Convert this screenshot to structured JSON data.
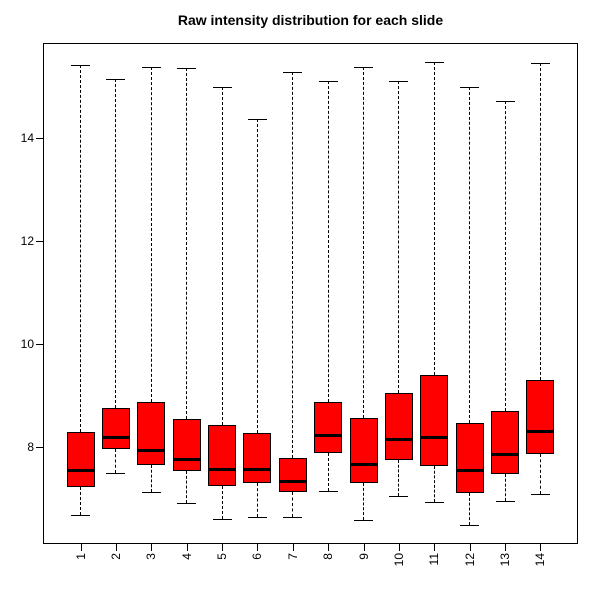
{
  "chart_data": {
    "type": "boxplot",
    "title": "Raw intensity distribution for each slide",
    "xlabel": "",
    "ylabel": "",
    "categories": [
      "1",
      "2",
      "3",
      "4",
      "5",
      "6",
      "7",
      "8",
      "9",
      "10",
      "11",
      "12",
      "13",
      "14"
    ],
    "yticks": [
      8,
      10,
      12,
      14
    ],
    "ylim": [
      6.12,
      15.85
    ],
    "grid": false,
    "legend": null,
    "box_fill": "#ff0000",
    "box_border": "#000000",
    "series": [
      {
        "label": "1",
        "whisker_low": 6.68,
        "q1": 7.22,
        "median": 7.55,
        "q3": 8.3,
        "whisker_high": 15.43
      },
      {
        "label": "2",
        "whisker_low": 7.5,
        "q1": 7.97,
        "median": 8.2,
        "q3": 8.77,
        "whisker_high": 15.16
      },
      {
        "label": "3",
        "whisker_low": 7.13,
        "q1": 7.66,
        "median": 7.95,
        "q3": 8.88,
        "whisker_high": 15.39
      },
      {
        "label": "4",
        "whisker_low": 6.92,
        "q1": 7.53,
        "median": 7.77,
        "q3": 8.54,
        "whisker_high": 15.37
      },
      {
        "label": "5",
        "whisker_low": 6.61,
        "q1": 7.24,
        "median": 7.57,
        "q3": 8.44,
        "whisker_high": 15.0
      },
      {
        "label": "6",
        "whisker_low": 6.65,
        "q1": 7.31,
        "median": 7.57,
        "q3": 8.27,
        "whisker_high": 14.38
      },
      {
        "label": "7",
        "whisker_low": 6.65,
        "q1": 7.13,
        "median": 7.34,
        "q3": 7.79,
        "whisker_high": 15.28
      },
      {
        "label": "8",
        "whisker_low": 7.15,
        "q1": 7.89,
        "median": 8.23,
        "q3": 8.88,
        "whisker_high": 15.12
      },
      {
        "label": "9",
        "whisker_low": 6.58,
        "q1": 7.3,
        "median": 7.67,
        "q3": 8.57,
        "whisker_high": 15.38
      },
      {
        "label": "10",
        "whisker_low": 7.05,
        "q1": 7.76,
        "median": 8.15,
        "q3": 9.05,
        "whisker_high": 15.12
      },
      {
        "label": "11",
        "whisker_low": 6.94,
        "q1": 7.63,
        "median": 8.19,
        "q3": 9.41,
        "whisker_high": 15.49
      },
      {
        "label": "12",
        "whisker_low": 6.49,
        "q1": 7.11,
        "median": 7.55,
        "q3": 8.47,
        "whisker_high": 14.99
      },
      {
        "label": "13",
        "whisker_low": 6.95,
        "q1": 7.47,
        "median": 7.86,
        "q3": 8.7,
        "whisker_high": 14.73
      },
      {
        "label": "14",
        "whisker_low": 7.1,
        "q1": 7.86,
        "median": 8.32,
        "q3": 9.3,
        "whisker_high": 15.47
      }
    ]
  }
}
